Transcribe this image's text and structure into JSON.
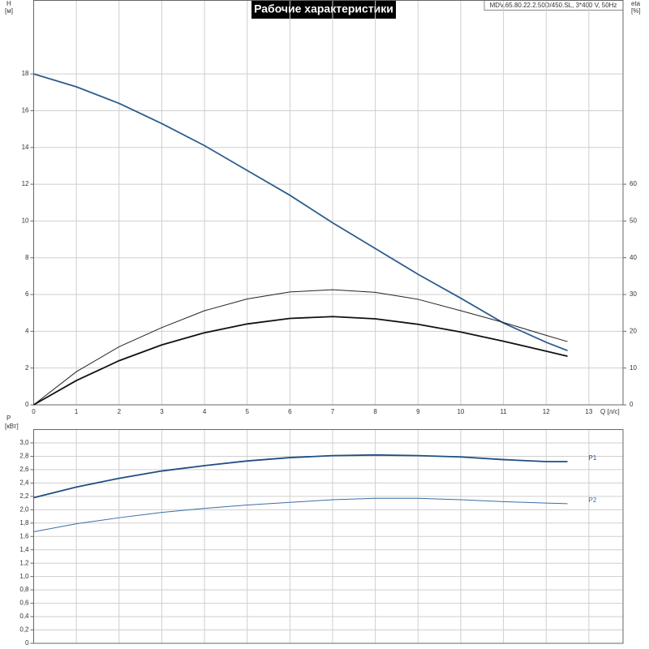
{
  "chart_data": [
    {
      "type": "line",
      "title": "Рабочие характеристики",
      "note": "MDV.65.80.22.2.50D/450.SL, 3*400 V, 50Hz",
      "ylabel": [
        "H",
        "[м]"
      ],
      "y2label": [
        "eta",
        "[%]"
      ],
      "xlabel": "Q [л/с]",
      "xlim": [
        0,
        13.8
      ],
      "xticks": [
        0,
        1,
        2,
        3,
        4,
        5,
        6,
        7,
        8,
        9,
        10,
        11,
        12,
        13
      ],
      "ylim": [
        0,
        22
      ],
      "yticks": [
        0,
        2,
        4,
        6,
        8,
        10,
        12,
        14,
        16,
        18
      ],
      "y2lim": [
        0,
        110
      ],
      "y2ticks": [
        0,
        10,
        20,
        30,
        40,
        50,
        60
      ],
      "grid": true,
      "x": [
        0,
        1,
        2,
        3,
        4,
        5,
        6,
        7,
        8,
        9,
        10,
        11,
        12,
        12.5
      ],
      "series": [
        {
          "color": "#2c5d8e",
          "width": 1.8,
          "values": [
            18,
            17.3,
            16.4,
            15.3,
            14.1,
            12.75,
            11.4,
            9.9,
            8.5,
            7.1,
            5.8,
            4.45,
            3.4,
            2.95
          ]
        },
        {
          "color": "#222222",
          "width": 1,
          "axis": "y2",
          "values": [
            0,
            9,
            15.8,
            21,
            25.6,
            28.8,
            30.7,
            31.3,
            30.6,
            28.7,
            25.6,
            22.4,
            18.9,
            17.2
          ]
        },
        {
          "color": "#111111",
          "width": 1.8,
          "axis": "y2",
          "values": [
            0,
            6.6,
            12,
            16.3,
            19.6,
            22,
            23.5,
            24,
            23.4,
            21.9,
            19.8,
            17.3,
            14.6,
            13.2
          ]
        }
      ]
    },
    {
      "type": "line",
      "ylabel": [
        "P",
        "[кВт]"
      ],
      "xlim": [
        0,
        13.8
      ],
      "ylim": [
        0,
        3.2
      ],
      "yticks": [
        0,
        {
          "value": 0.2,
          "label": "0,2"
        },
        {
          "value": 0.4,
          "label": "0,4"
        },
        {
          "value": 0.6,
          "label": "0,6"
        },
        {
          "value": 0.8,
          "label": "0,8"
        },
        {
          "value": 1.0,
          "label": "1,0"
        },
        {
          "value": 1.2,
          "label": "1,2"
        },
        {
          "value": 1.4,
          "label": "1,4"
        },
        {
          "value": 1.6,
          "label": "1,6"
        },
        {
          "value": 1.8,
          "label": "1,8"
        },
        {
          "value": 2.0,
          "label": "2,0"
        },
        {
          "value": 2.2,
          "label": "2,2"
        },
        {
          "value": 2.4,
          "label": "2,4"
        },
        {
          "value": 2.6,
          "label": "2,6"
        },
        {
          "value": 2.8,
          "label": "2,8"
        },
        {
          "value": 3.0,
          "label": "3,0"
        }
      ],
      "grid": true,
      "x": [
        0,
        1,
        2,
        3,
        4,
        5,
        6,
        7,
        8,
        9,
        10,
        11,
        12,
        12.5
      ],
      "series": [
        {
          "name": "P1",
          "color": "#1f4e85",
          "width": 1.8,
          "values": [
            2.18,
            2.34,
            2.47,
            2.58,
            2.66,
            2.73,
            2.78,
            2.81,
            2.82,
            2.81,
            2.79,
            2.75,
            2.72,
            2.72
          ]
        },
        {
          "name": "P2",
          "color": "#3a6ea5",
          "width": 1,
          "values": [
            1.67,
            1.79,
            1.88,
            1.96,
            2.02,
            2.07,
            2.11,
            2.15,
            2.17,
            2.17,
            2.15,
            2.12,
            2.1,
            2.09
          ]
        }
      ]
    }
  ]
}
